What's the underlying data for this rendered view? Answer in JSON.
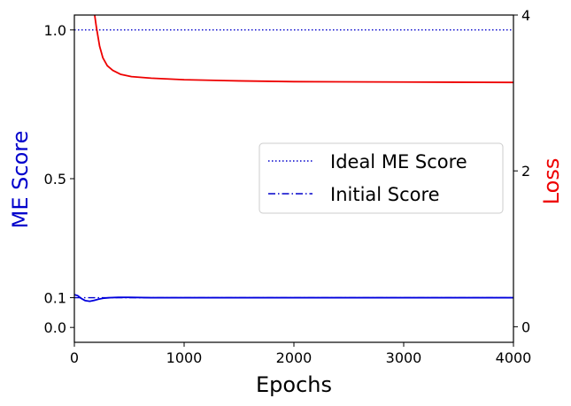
{
  "chart_data": {
    "type": "line",
    "xlabel": "Epochs",
    "ylabel_left": "ME Score",
    "ylabel_right": "Loss",
    "xlim": [
      0,
      4000
    ],
    "ylim_left": [
      -0.05,
      1.05
    ],
    "ylim_right": [
      -0.2,
      4.0
    ],
    "x_ticks": [
      "0",
      "1000",
      "2000",
      "3000",
      "4000"
    ],
    "x_tick_values": [
      0,
      1000,
      2000,
      3000,
      4000
    ],
    "y_left_ticks": [
      "0.0",
      "0.1",
      "0.5",
      "1.0"
    ],
    "y_left_tick_values": [
      0.0,
      0.1,
      0.5,
      1.0
    ],
    "y_right_ticks": [
      "0",
      "2",
      "4"
    ],
    "y_right_tick_values": [
      0,
      2,
      4
    ],
    "grid": false,
    "legend_position": "center-right",
    "legend": [
      {
        "label": "Ideal ME Score",
        "style": "dotted",
        "color": "#0000cc"
      },
      {
        "label": "Initial Score",
        "style": "dashdot",
        "color": "#0000cc"
      }
    ],
    "series": [
      {
        "axis": "left",
        "style": "dotted",
        "color": "#0000cc",
        "x": [
          0,
          4000
        ],
        "y": [
          1.0,
          1.0
        ]
      },
      {
        "axis": "left",
        "style": "dashdot",
        "color": "#0000cc",
        "x": [
          0,
          4000
        ],
        "y": [
          0.1,
          0.1
        ]
      },
      {
        "axis": "left",
        "style": "solid",
        "color": "#0000dd",
        "x": [
          0,
          30,
          60,
          100,
          140,
          180,
          220,
          260,
          320,
          400,
          500,
          700,
          1000,
          2000,
          3000,
          4000
        ],
        "y": [
          0.11,
          0.107,
          0.098,
          0.09,
          0.088,
          0.091,
          0.095,
          0.098,
          0.1,
          0.101,
          0.101,
          0.1,
          0.1,
          0.1,
          0.1,
          0.1
        ]
      },
      {
        "axis": "right",
        "style": "solid",
        "color": "#ee0000",
        "x": [
          180,
          200,
          230,
          260,
          300,
          350,
          420,
          520,
          700,
          1000,
          1500,
          2000,
          3000,
          4000
        ],
        "y": [
          4.05,
          3.85,
          3.6,
          3.45,
          3.35,
          3.29,
          3.24,
          3.21,
          3.19,
          3.17,
          3.155,
          3.145,
          3.14,
          3.135
        ]
      }
    ]
  }
}
